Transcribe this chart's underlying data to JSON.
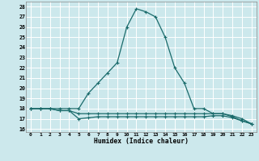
{
  "xlabel": "Humidex (Indice chaleur)",
  "bg_color": "#cce8ec",
  "grid_color": "#ffffff",
  "line_color": "#1a6b6b",
  "xlim": [
    -0.5,
    23.5
  ],
  "ylim": [
    15.7,
    28.5
  ],
  "xticks": [
    0,
    1,
    2,
    3,
    4,
    5,
    6,
    7,
    8,
    9,
    10,
    11,
    12,
    13,
    14,
    15,
    16,
    17,
    18,
    19,
    20,
    21,
    22,
    23
  ],
  "yticks": [
    16,
    17,
    18,
    19,
    20,
    21,
    22,
    23,
    24,
    25,
    26,
    27,
    28
  ],
  "line1_x": [
    0,
    1,
    2,
    3,
    4,
    5,
    6,
    7,
    8,
    9,
    10,
    11,
    12,
    13,
    14,
    15,
    16,
    17,
    18,
    19,
    20,
    21,
    22,
    23
  ],
  "line1_y": [
    18,
    18,
    18,
    18,
    18,
    18,
    19.5,
    20.5,
    21.5,
    22.5,
    26,
    27.8,
    27.5,
    27,
    25,
    22,
    20.5,
    18,
    18,
    17.5,
    17.5,
    17.2,
    16.8,
    16.5
  ],
  "line2_x": [
    0,
    1,
    2,
    3,
    4,
    5,
    6,
    7,
    8,
    9,
    10,
    11,
    12,
    13,
    14,
    15,
    16,
    17,
    18,
    19,
    20,
    21,
    22,
    23
  ],
  "line2_y": [
    18,
    18,
    18,
    17.8,
    17.8,
    17.5,
    17.5,
    17.5,
    17.5,
    17.5,
    17.5,
    17.5,
    17.5,
    17.5,
    17.5,
    17.5,
    17.5,
    17.5,
    17.5,
    17.5,
    17.5,
    17.3,
    17.0,
    16.5
  ],
  "line3_x": [
    0,
    1,
    2,
    3,
    4,
    5,
    6,
    7,
    8,
    9,
    10,
    11,
    12,
    13,
    14,
    15,
    16,
    17,
    18,
    19,
    20,
    21,
    22,
    23
  ],
  "line3_y": [
    18,
    18,
    18,
    17.8,
    17.8,
    17.0,
    17.1,
    17.2,
    17.2,
    17.2,
    17.2,
    17.2,
    17.2,
    17.2,
    17.2,
    17.2,
    17.2,
    17.2,
    17.2,
    17.3,
    17.3,
    17.1,
    16.8,
    16.5
  ]
}
